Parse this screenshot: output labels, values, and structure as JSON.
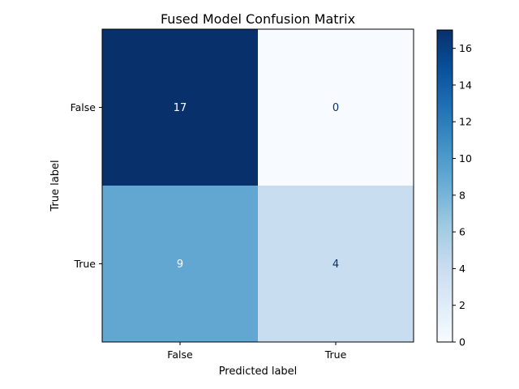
{
  "chart_data": {
    "type": "heatmap",
    "title": "Fused Model Confusion Matrix",
    "xlabel": "Predicted label",
    "ylabel": "True label",
    "x_categories": [
      "False",
      "True"
    ],
    "y_categories": [
      "False",
      "True"
    ],
    "matrix": [
      [
        17,
        0
      ],
      [
        9,
        4
      ]
    ],
    "colorbar": {
      "min": 0,
      "max": 17,
      "ticks": [
        0,
        2,
        4,
        6,
        8,
        10,
        12,
        14,
        16
      ],
      "colormap": "Blues"
    },
    "colors": {
      "colormap_low": "#f7fbff",
      "colormap_high": "#08306b",
      "text_on_dark": "#ffffff",
      "text_on_light": "#08306b"
    }
  }
}
